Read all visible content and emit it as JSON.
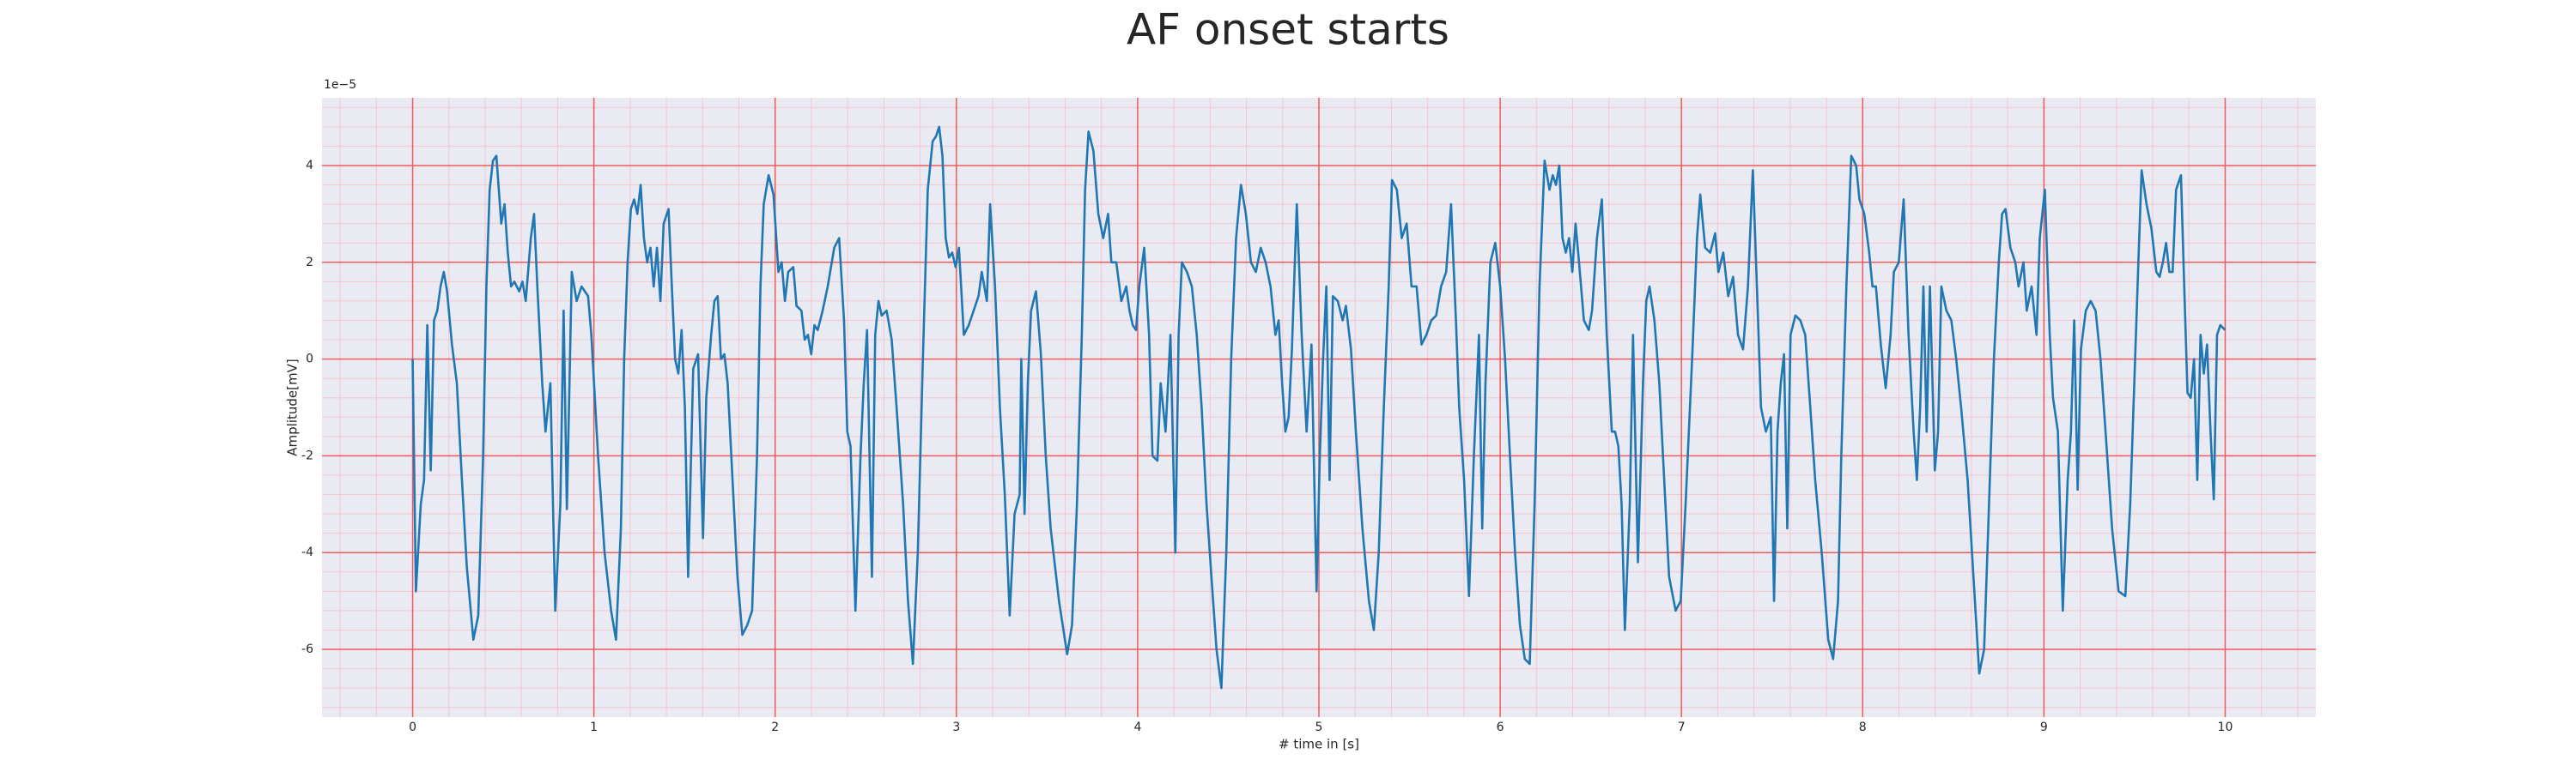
{
  "chart_data": {
    "type": "line",
    "title": "AF onset starts",
    "xlabel": "# time in [s]",
    "ylabel": "Amplitude[mV]",
    "y_offset_label": "1e−5",
    "color": "#1f77b4",
    "background": "#eaeaf2",
    "grid": true,
    "grid_color": "#f25a5a",
    "minor_grid_color": "#f3c6d0",
    "xlim": [
      -0.5,
      10.5
    ],
    "ylim": [
      -7.4,
      5.4
    ],
    "xticks": [
      0,
      1,
      2,
      3,
      4,
      5,
      6,
      7,
      8,
      9,
      10
    ],
    "yticks": [
      -6,
      -4,
      -2,
      0,
      2,
      4
    ],
    "xminorticks": [
      -0.4,
      -0.2,
      0.2,
      0.4,
      0.6,
      0.8,
      1.2,
      1.4,
      1.6,
      1.8,
      2.2,
      2.4,
      2.6,
      2.8,
      3.2,
      3.4,
      3.6,
      3.8,
      4.2,
      4.4,
      4.6,
      4.8,
      5.2,
      5.4,
      5.6,
      5.8,
      6.2,
      6.4,
      6.6,
      6.8,
      7.2,
      7.4,
      7.6,
      7.8,
      8.2,
      8.4,
      8.6,
      8.8,
      9.2,
      9.4,
      9.6,
      9.8,
      10.2,
      10.4
    ],
    "yminorticks": [
      -7.2,
      -6.8,
      -6.4,
      -5.6,
      -5.2,
      -4.8,
      -4.4,
      -3.6,
      -3.2,
      -2.8,
      -2.4,
      -1.6,
      -1.2,
      -0.8,
      -0.4,
      0.4,
      0.8,
      1.2,
      1.6,
      2.4,
      2.8,
      3.2,
      3.6,
      4.4,
      4.8,
      5.2
    ],
    "x": [
      0,
      0.018,
      0.045,
      0.063,
      0.081,
      0.1,
      0.118,
      0.136,
      0.154,
      0.172,
      0.19,
      0.217,
      0.244,
      0.272,
      0.299,
      0.335,
      0.362,
      0.389,
      0.407,
      0.425,
      0.443,
      0.462,
      0.489,
      0.507,
      0.525,
      0.543,
      0.561,
      0.588,
      0.606,
      0.624,
      0.652,
      0.67,
      0.688,
      0.715,
      0.733,
      0.76,
      0.787,
      0.815,
      0.833,
      0.851,
      0.878,
      0.905,
      0.932,
      0.968,
      0.986,
      1.023,
      1.059,
      1.095,
      1.122,
      1.149,
      1.167,
      1.186,
      1.204,
      1.222,
      1.24,
      1.258,
      1.276,
      1.294,
      1.312,
      1.33,
      1.348,
      1.367,
      1.385,
      1.412,
      1.43,
      1.448,
      1.466,
      1.484,
      1.502,
      1.52,
      1.548,
      1.575,
      1.602,
      1.62,
      1.647,
      1.665,
      1.683,
      1.701,
      1.72,
      1.738,
      1.765,
      1.792,
      1.819,
      1.846,
      1.873,
      1.9,
      1.919,
      1.937,
      1.964,
      1.991,
      2.018,
      2.036,
      2.054,
      2.072,
      2.1,
      2.118,
      2.145,
      2.163,
      2.181,
      2.199,
      2.217,
      2.235,
      2.262,
      2.29,
      2.326,
      2.353,
      2.38,
      2.398,
      2.416,
      2.443,
      2.471,
      2.489,
      2.507,
      2.534,
      2.552,
      2.57,
      2.588,
      2.615,
      2.643,
      2.67,
      2.706,
      2.733,
      2.76,
      2.787,
      2.815,
      2.842,
      2.869,
      2.887,
      2.905,
      2.923,
      2.941,
      2.959,
      2.977,
      2.996,
      3.014,
      3.041,
      3.068,
      3.095,
      3.122,
      3.14,
      3.168,
      3.186,
      3.213,
      3.24,
      3.267,
      3.294,
      3.321,
      3.349,
      3.358,
      3.376,
      3.394,
      3.412,
      3.439,
      3.466,
      3.493,
      3.52,
      3.566,
      3.611,
      3.638,
      3.665,
      3.692,
      3.71,
      3.729,
      3.756,
      3.783,
      3.81,
      3.837,
      3.855,
      3.882,
      3.91,
      3.937,
      3.955,
      3.973,
      3.991,
      4.009,
      4.036,
      4.063,
      4.082,
      4.109,
      4.127,
      4.154,
      4.181,
      4.208,
      4.226,
      4.244,
      4.272,
      4.299,
      4.326,
      4.353,
      4.38,
      4.407,
      4.435,
      4.462,
      4.489,
      4.516,
      4.543,
      4.57,
      4.597,
      4.625,
      4.652,
      4.679,
      4.706,
      4.733,
      4.76,
      4.778,
      4.797,
      4.815,
      4.833,
      4.851,
      4.878,
      4.905,
      4.932,
      4.959,
      4.987,
      5.005,
      5.023,
      5.041,
      5.059,
      5.077,
      5.104,
      5.131,
      5.149,
      5.177,
      5.204,
      5.24,
      5.276,
      5.303,
      5.33,
      5.358,
      5.385,
      5.403,
      5.43,
      5.457,
      5.484,
      5.511,
      5.539,
      5.566,
      5.593,
      5.62,
      5.647,
      5.674,
      5.702,
      5.729,
      5.756,
      5.774,
      5.801,
      5.828,
      5.855,
      5.883,
      5.901,
      5.919,
      5.946,
      5.973,
      6.0,
      6.027,
      6.054,
      6.082,
      6.109,
      6.136,
      6.163,
      6.19,
      6.217,
      6.245,
      6.272,
      6.29,
      6.308,
      6.326,
      6.344,
      6.362,
      6.38,
      6.398,
      6.416,
      6.435,
      6.462,
      6.489,
      6.507,
      6.534,
      6.561,
      6.588,
      6.616,
      6.634,
      6.652,
      6.67,
      6.688,
      6.715,
      6.733,
      6.76,
      6.788,
      6.806,
      6.824,
      6.851,
      6.878,
      6.905,
      6.932,
      6.968,
      6.996,
      7.023,
      7.059,
      7.086,
      7.104,
      7.131,
      7.159,
      7.186,
      7.204,
      7.231,
      7.258,
      7.285,
      7.312,
      7.34,
      7.367,
      7.394,
      7.421,
      7.439,
      7.466,
      7.493,
      7.511,
      7.53,
      7.548,
      7.566,
      7.584,
      7.602,
      7.629,
      7.656,
      7.683,
      7.711,
      7.738,
      7.774,
      7.81,
      7.837,
      7.864,
      7.882,
      7.91,
      7.937,
      7.964,
      7.982,
      8.009,
      8.036,
      8.054,
      8.073,
      8.1,
      8.127,
      8.154,
      8.172,
      8.199,
      8.226,
      8.253,
      8.281,
      8.299,
      8.317,
      8.335,
      8.353,
      8.371,
      8.398,
      8.416,
      8.434,
      8.462,
      8.489,
      8.516,
      8.543,
      8.579,
      8.616,
      8.643,
      8.67,
      8.697,
      8.724,
      8.751,
      8.769,
      8.788,
      8.815,
      8.842,
      8.86,
      8.887,
      8.905,
      8.932,
      8.959,
      8.977,
      9.005,
      9.032,
      9.05,
      9.077,
      9.104,
      9.131,
      9.149,
      9.167,
      9.186,
      9.204,
      9.231,
      9.258,
      9.285,
      9.312,
      9.34,
      9.376,
      9.412,
      9.449,
      9.476,
      9.503,
      9.521,
      9.539,
      9.566,
      9.593,
      9.62,
      9.638,
      9.656,
      9.674,
      9.692,
      9.71,
      9.729,
      9.756,
      9.774,
      9.792,
      9.81,
      9.828,
      9.846,
      9.864,
      9.882,
      9.9,
      9.919,
      9.937,
      9.955,
      9.973,
      10.0
    ],
    "values": [
      0,
      -4.8,
      -3,
      -2.5,
      0.7,
      -2.3,
      0.8,
      1.0,
      1.5,
      1.8,
      1.4,
      0.3,
      -0.5,
      -2.5,
      -4.3,
      -5.8,
      -5.3,
      -2,
      1.5,
      3.5,
      4.1,
      4.2,
      2.8,
      3.2,
      2.2,
      1.5,
      1.6,
      1.4,
      1.6,
      1.2,
      2.5,
      3.0,
      1.5,
      -0.5,
      -1.5,
      -0.5,
      -5.2,
      -3,
      1.0,
      -3.1,
      1.8,
      1.2,
      1.5,
      1.3,
      0.5,
      -2,
      -4,
      -5.2,
      -5.8,
      -3.5,
      0,
      2,
      3.1,
      3.3,
      3.0,
      3.6,
      2.5,
      2.0,
      2.3,
      1.5,
      2.3,
      1.2,
      2.8,
      3.1,
      1.5,
      0,
      -0.3,
      0.6,
      -1,
      -4.5,
      -0.2,
      0.1,
      -3.7,
      -0.8,
      0.5,
      1.2,
      1.3,
      0.0,
      0.1,
      -0.5,
      -2.5,
      -4.5,
      -5.7,
      -5.5,
      -5.2,
      -2,
      1.5,
      3.2,
      3.8,
      3.4,
      1.8,
      2.0,
      1.2,
      1.8,
      1.9,
      1.1,
      1.0,
      0.4,
      0.5,
      0.1,
      0.7,
      0.6,
      1.0,
      1.5,
      2.3,
      2.5,
      0.8,
      -1.5,
      -1.8,
      -5.2,
      -2,
      -0.5,
      0.6,
      -4.5,
      0.5,
      1.2,
      0.9,
      1.0,
      0.4,
      -1,
      -3,
      -5,
      -6.3,
      -4,
      0,
      3.5,
      4.5,
      4.6,
      4.8,
      4.2,
      2.5,
      2.1,
      2.2,
      1.9,
      2.3,
      0.5,
      0.7,
      1.0,
      1.3,
      1.8,
      1.2,
      3.2,
      1.5,
      -1,
      -2.8,
      -5.3,
      -3.2,
      -2.8,
      0,
      -3.2,
      -0.5,
      1.0,
      1.4,
      0.1,
      -2,
      -3.5,
      -5,
      -6.1,
      -5.5,
      -3,
      0.5,
      3.5,
      4.7,
      4.3,
      3.0,
      2.5,
      3.0,
      2.0,
      2.0,
      1.2,
      1.5,
      1.0,
      0.7,
      0.6,
      1.5,
      2.3,
      0.5,
      -2.0,
      -2.1,
      -0.5,
      -1.5,
      0.5,
      -4,
      0.5,
      2.0,
      1.8,
      1.5,
      0.5,
      -1,
      -3,
      -4.5,
      -6.0,
      -6.8,
      -4,
      0,
      2.5,
      3.6,
      3.0,
      2.0,
      1.8,
      2.3,
      2.0,
      1.5,
      0.5,
      0.8,
      -0.5,
      -1.5,
      -1.2,
      0.2,
      3.2,
      0.5,
      -1.5,
      0.3,
      -4.8,
      -2,
      0,
      1.5,
      -2.5,
      1.3,
      1.2,
      0.8,
      1.1,
      0.2,
      -1.5,
      -3.5,
      -5.0,
      -5.6,
      -4,
      -1,
      1.5,
      3.7,
      3.5,
      2.5,
      2.8,
      1.5,
      1.5,
      0.3,
      0.5,
      0.8,
      0.9,
      1.5,
      1.8,
      3.2,
      0.8,
      -1,
      -2.5,
      -4.9,
      -2,
      0.5,
      -3.5,
      -0.5,
      2.0,
      2.4,
      1.5,
      0,
      -2,
      -4,
      -5.5,
      -6.2,
      -6.3,
      -3,
      1.5,
      4.1,
      3.5,
      3.8,
      3.6,
      4.0,
      2.5,
      2.2,
      2.5,
      1.8,
      2.8,
      2.0,
      0.8,
      0.6,
      1.0,
      2.5,
      3.3,
      0.5,
      -1.5,
      -1.5,
      -1.8,
      -3,
      -5.6,
      -3,
      0.5,
      -4.2,
      -0.5,
      1.2,
      1.5,
      0.8,
      -0.5,
      -2.5,
      -4.5,
      -5.2,
      -5.0,
      -3,
      0,
      2.5,
      3.4,
      2.3,
      2.2,
      2.6,
      1.8,
      2.2,
      1.3,
      1.7,
      0.5,
      0.2,
      1.5,
      3.9,
      1.0,
      -1.0,
      -1.5,
      -1.2,
      -5.0,
      -1.5,
      -0.5,
      0.1,
      -3.5,
      0.5,
      0.9,
      0.8,
      0.5,
      -1,
      -2.5,
      -4,
      -5.8,
      -6.2,
      -5.0,
      -2,
      1.5,
      4.2,
      4.0,
      3.3,
      3.0,
      2.2,
      1.5,
      1.5,
      0.3,
      -0.6,
      0.5,
      1.8,
      2.0,
      3.3,
      0.5,
      -1.5,
      -2.5,
      -1.0,
      1.5,
      -1.5,
      1.5,
      -2.3,
      -1.5,
      1.5,
      1.0,
      0.8,
      0.0,
      -1,
      -2.5,
      -4.8,
      -6.5,
      -6.0,
      -3,
      0,
      2.0,
      3.0,
      3.1,
      2.3,
      2.0,
      1.5,
      2.0,
      1.0,
      1.5,
      0.5,
      2.5,
      3.5,
      0.5,
      -0.8,
      -1.5,
      -5.2,
      -2.5,
      -1.5,
      0.8,
      -2.7,
      0.2,
      1.0,
      1.2,
      1.0,
      0.0,
      -1.5,
      -3.5,
      -4.8,
      -4.9,
      -3,
      0,
      2.0,
      3.9,
      3.2,
      2.7,
      1.8,
      1.7,
      2.0,
      2.4,
      1.8,
      1.8,
      3.5,
      3.8,
      1.5,
      -0.7,
      -0.8,
      0.0,
      -2.5,
      0.5,
      -0.3,
      0.3,
      -1.5,
      -2.9,
      0.5,
      0.7,
      0.6
    ]
  }
}
